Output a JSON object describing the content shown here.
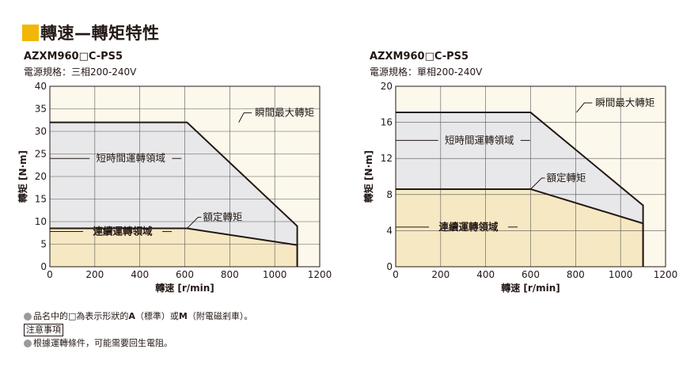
{
  "heading": "轉速—轉矩特性",
  "colors": {
    "heading_mark": "#f2b705",
    "continuous_fill": "#f6e8c3",
    "short_fill": "#e8e8ea",
    "plot_bg": "#fdf8ec"
  },
  "chart_data": [
    {
      "type": "area",
      "model": "AZXM960□C-PS5",
      "subtitle": "電源規格：三相200-240V",
      "xlabel": "轉速 [r/min]",
      "ylabel": "轉矩 [N·m]",
      "xlim": [
        0,
        1200
      ],
      "ylim": [
        0,
        40
      ],
      "xticks": [
        0,
        200,
        400,
        600,
        800,
        1000,
        1200
      ],
      "yticks": [
        0,
        5,
        10,
        15,
        20,
        25,
        30,
        35,
        40
      ],
      "grid": true,
      "series": [
        {
          "name": "瞬間最大轉矩",
          "region": "短時間運轉領域",
          "x": [
            0,
            610,
            1100,
            1100
          ],
          "y": [
            32,
            32,
            9,
            0
          ]
        },
        {
          "name": "額定轉矩",
          "region": "連續運轉領域",
          "x": [
            0,
            610,
            1100,
            1100
          ],
          "y": [
            8.5,
            8.5,
            4.8,
            0
          ]
        }
      ],
      "annotations": {
        "peak": "瞬間最大轉矩",
        "rated": "額定轉矩",
        "short_region": "短時間運轉領域",
        "continuous_region": "連續運轉領域"
      }
    },
    {
      "type": "area",
      "model": "AZXM960□C-PS5",
      "subtitle": "電源規格：單相200-240V",
      "xlabel": "轉速 [r/min]",
      "ylabel": "轉矩 [N·m]",
      "xlim": [
        0,
        1200
      ],
      "ylim": [
        0,
        20
      ],
      "xticks": [
        0,
        200,
        400,
        600,
        800,
        1000,
        1200
      ],
      "yticks": [
        0,
        4,
        8,
        12,
        16,
        20
      ],
      "grid": true,
      "series": [
        {
          "name": "瞬間最大轉矩",
          "region": "短時間運轉領域",
          "x": [
            0,
            600,
            1100,
            1100
          ],
          "y": [
            17.1,
            17.1,
            6.8,
            0
          ]
        },
        {
          "name": "額定轉矩",
          "region": "連續運轉領域",
          "x": [
            0,
            600,
            1100,
            1100
          ],
          "y": [
            8.6,
            8.6,
            4.8,
            0
          ]
        }
      ],
      "annotations": {
        "peak": "瞬間最大轉矩",
        "rated": "額定轉矩",
        "short_region": "短時間運轉領域",
        "continuous_region": "連續運轉領域"
      }
    }
  ],
  "notes": {
    "note1_pre": "品名中的□為表示形狀的",
    "note1_a": "A",
    "note1_mid": "（標準）或",
    "note1_m": "M",
    "note1_post": "（附電磁剎車）。",
    "caution": "注意事項",
    "note2": "根據運轉條件，可能需要回生電阻。"
  }
}
